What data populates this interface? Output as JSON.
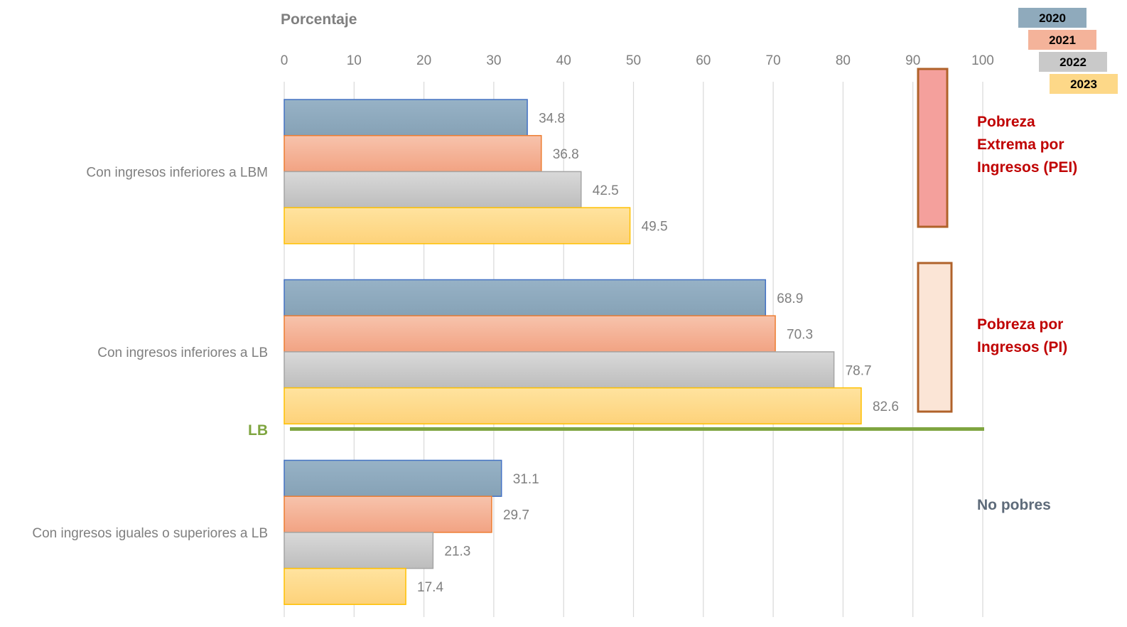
{
  "chart_data": {
    "type": "bar",
    "orientation": "horizontal",
    "xlabel": "Porcentaje",
    "xlim": [
      0,
      100
    ],
    "xticks": [
      "0",
      "10",
      "20",
      "30",
      "40",
      "50",
      "60",
      "70",
      "80",
      "90",
      "100"
    ],
    "grid": true,
    "categories": [
      "Con ingresos inferiores a LBM",
      "Con ingresos inferiores a LB",
      "Con ingresos iguales o superiores a LB"
    ],
    "series": [
      {
        "name": "2020",
        "values": [
          34.8,
          68.9,
          31.1
        ],
        "color": "#8faabc",
        "stroke": "#4472c4"
      },
      {
        "name": "2021",
        "values": [
          36.8,
          70.3,
          29.7
        ],
        "color": "#f4b39a",
        "stroke": "#ed7d31"
      },
      {
        "name": "2022",
        "values": [
          42.5,
          78.7,
          21.3
        ],
        "color": "#c9c9c9",
        "stroke": "#a5a5a5"
      },
      {
        "name": "2023",
        "values": [
          49.5,
          82.6,
          17.4
        ],
        "color": "#fdd888",
        "stroke": "#ffc000"
      }
    ],
    "labels": [
      [
        "34.8",
        "68.9",
        "31.1"
      ],
      [
        "36.8",
        "70.3",
        "29.7"
      ],
      [
        "42.5",
        "78.7",
        "21.3"
      ],
      [
        "49.5",
        "82.6",
        "17.4"
      ]
    ],
    "legend_position": "top-right",
    "reference_line": {
      "label": "LB",
      "color": "#7fa540"
    },
    "annotations": [
      {
        "lines": [
          "Pobreza",
          "Extrema por",
          "Ingresos (PEI)"
        ],
        "color": "#c00000",
        "box_fill": "#f4a09c",
        "box_stroke": "#b0622a"
      },
      {
        "lines": [
          "Pobreza por",
          "Ingresos (PI)"
        ],
        "color": "#c00000",
        "box_fill": "#fbe5d6",
        "box_stroke": "#b0622a"
      },
      {
        "lines": [
          "No pobres"
        ],
        "color": "#5e6b7a"
      }
    ]
  }
}
